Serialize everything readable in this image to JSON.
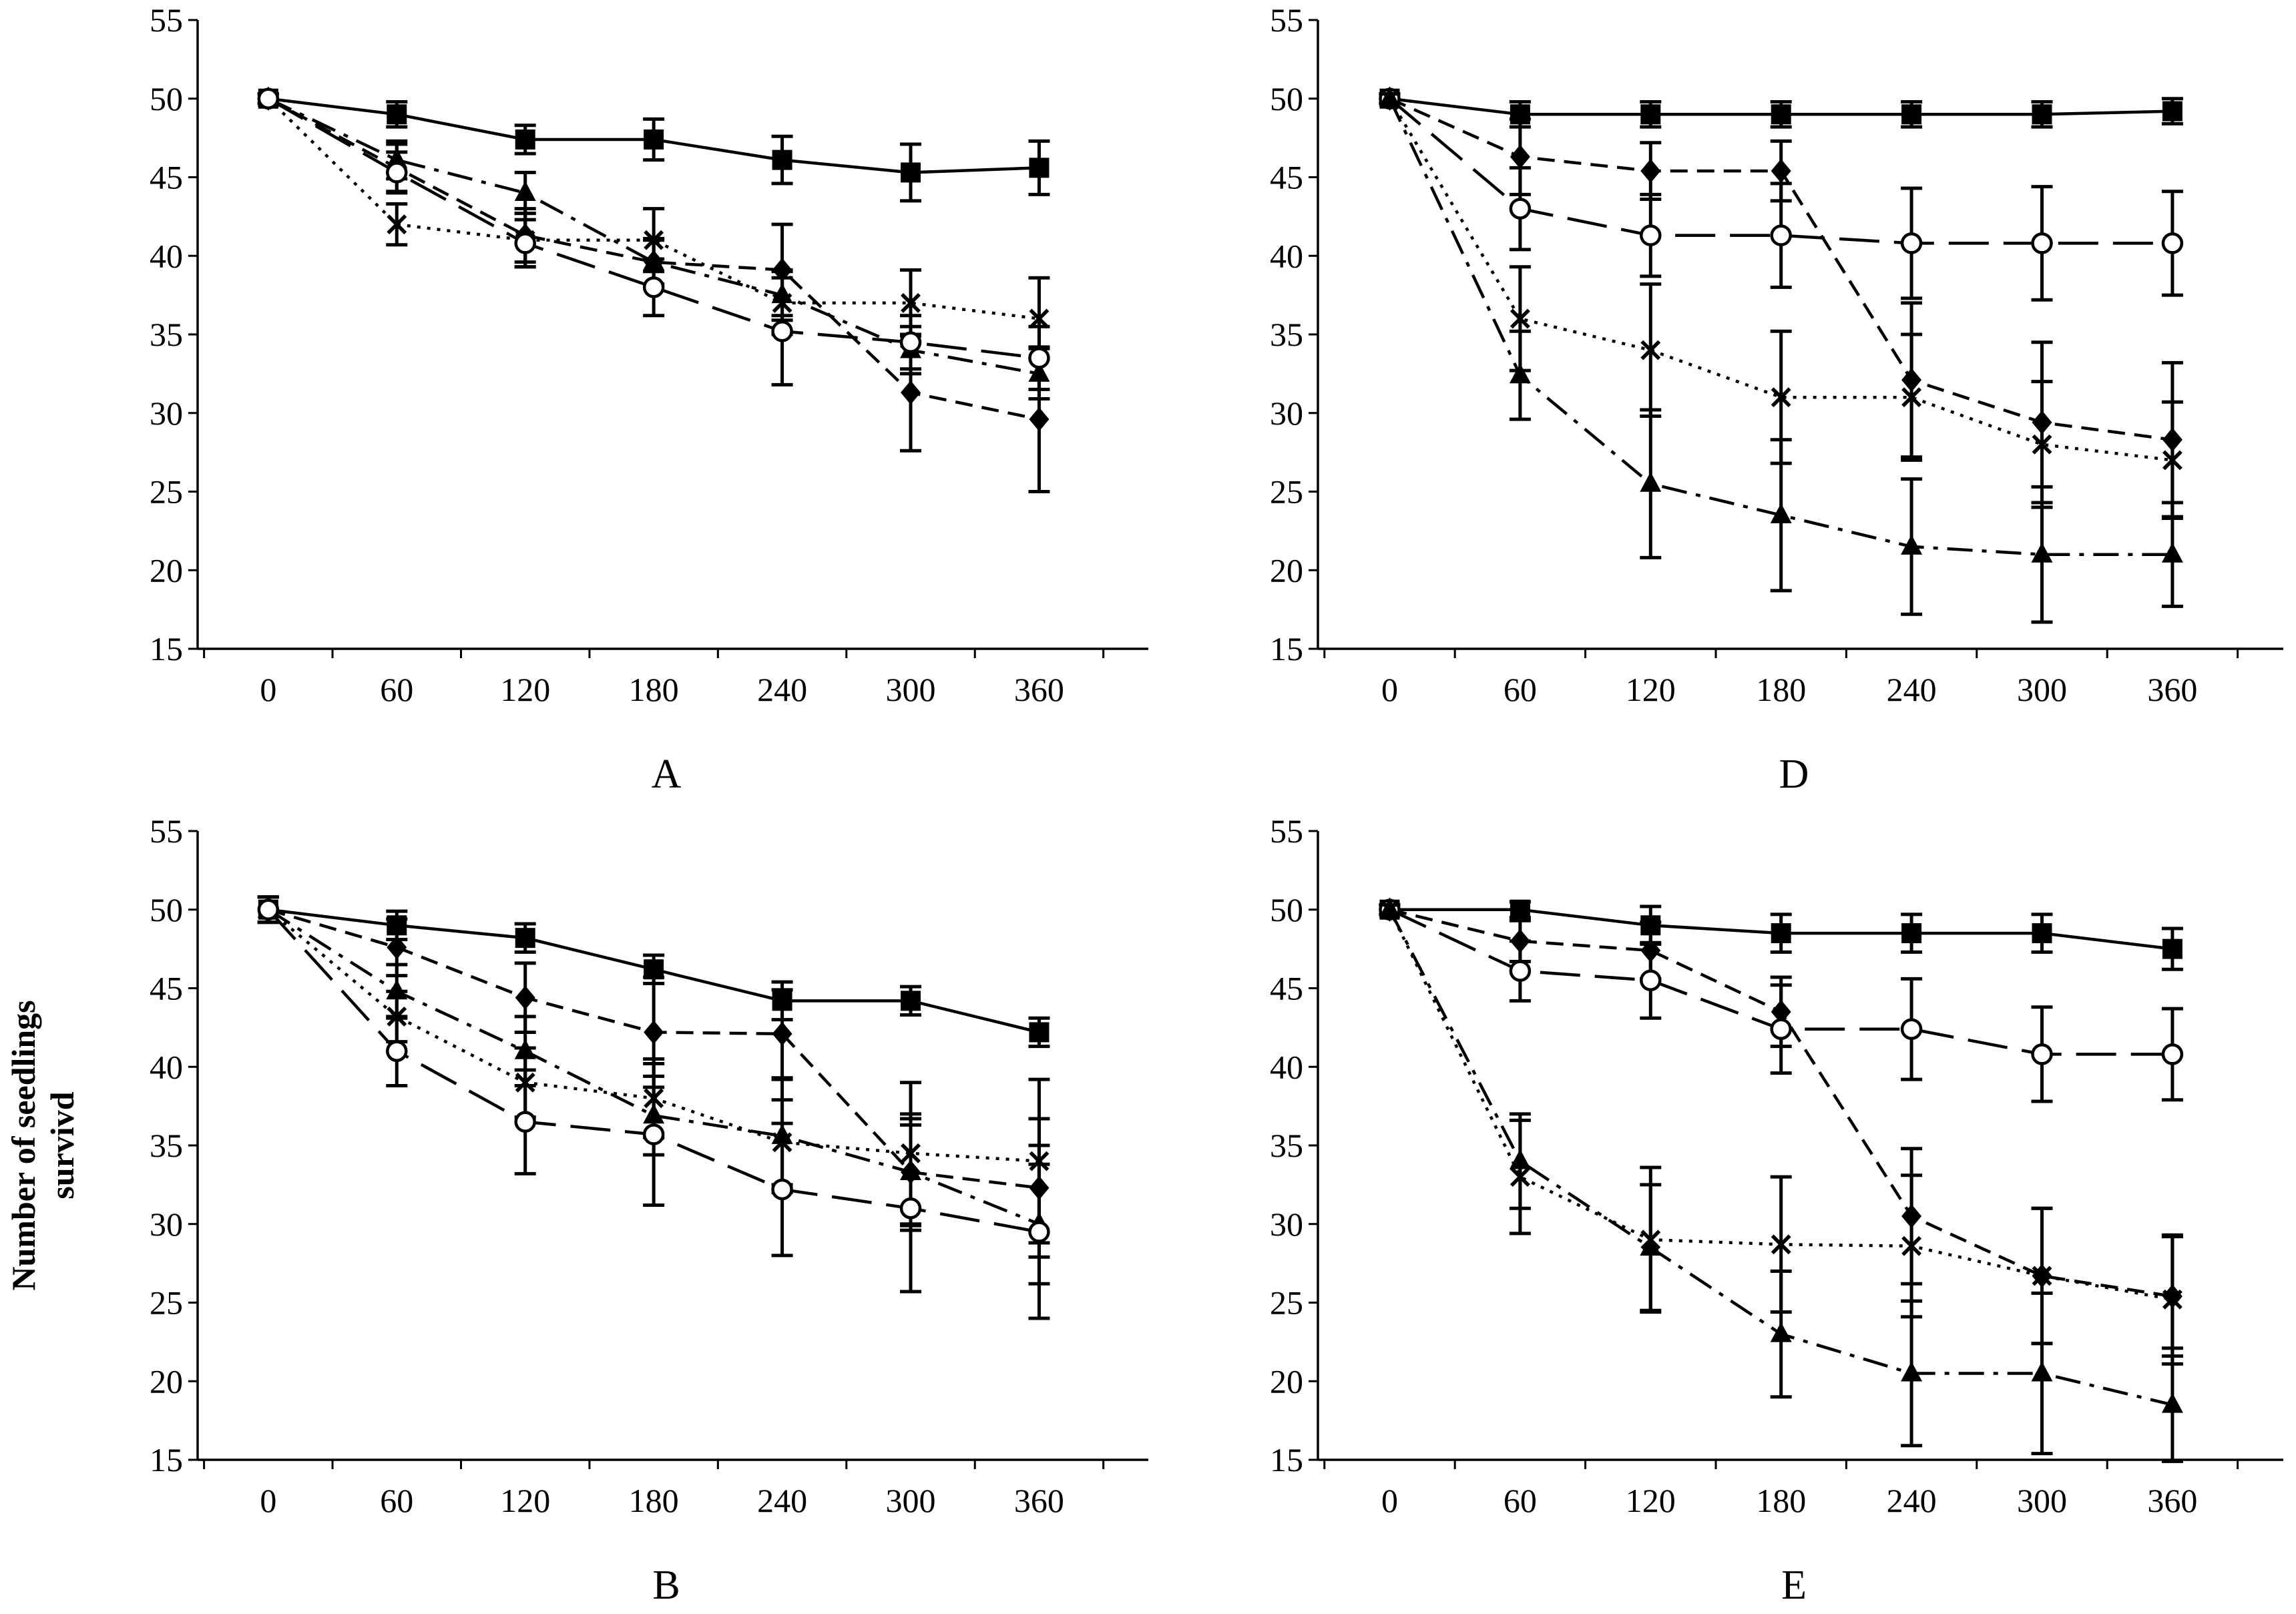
{
  "chart_data": [
    {
      "type": "line",
      "panel_label": "A",
      "x": [
        0,
        60,
        120,
        180,
        240,
        300,
        360
      ],
      "ylim": [
        15,
        55
      ],
      "yticks": [
        15,
        20,
        25,
        30,
        35,
        40,
        45,
        50,
        55
      ],
      "xlabel": "",
      "ylabel": "",
      "series": [
        {
          "name": "square",
          "marker": "square",
          "dash": "solid",
          "values": [
            50,
            49,
            47.4,
            47.4,
            46.1,
            45.3,
            45.6
          ],
          "err": [
            0.3,
            0.8,
            0.9,
            1.3,
            1.5,
            1.8,
            1.7
          ]
        },
        {
          "name": "diamond",
          "marker": "diamond",
          "dash": "short",
          "values": [
            50,
            45.6,
            41.3,
            39.6,
            39.1,
            31.3,
            29.6
          ],
          "err": [
            0.3,
            1.5,
            1.7,
            1.4,
            2.9,
            3.7,
            4.6
          ]
        },
        {
          "name": "triangle",
          "marker": "triangle",
          "dash": "dashdot",
          "values": [
            50,
            46.1,
            44,
            39.6,
            37.5,
            34,
            32.5
          ],
          "err": [
            0.3,
            1.2,
            1.3,
            1.5,
            1.6,
            1.5,
            1.6
          ]
        },
        {
          "name": "cross",
          "marker": "cross",
          "dash": "dot",
          "values": [
            50,
            42,
            41,
            41,
            37,
            37,
            36
          ],
          "err": [
            0.3,
            1.3,
            1.7,
            2,
            2,
            2.1,
            2.6
          ]
        },
        {
          "name": "circle",
          "marker": "circle",
          "dash": "long",
          "values": [
            50,
            45.3,
            40.8,
            38,
            35.2,
            34.5,
            33.5
          ],
          "err": [
            0.3,
            1.3,
            1.5,
            1.8,
            3.4,
            1.7,
            2
          ]
        }
      ]
    },
    {
      "type": "line",
      "panel_label": "D",
      "x": [
        0,
        60,
        120,
        180,
        240,
        300,
        360
      ],
      "ylim": [
        15,
        55
      ],
      "yticks": [
        15,
        20,
        25,
        30,
        35,
        40,
        45,
        50,
        55
      ],
      "xlabel": "",
      "ylabel": "",
      "series": [
        {
          "name": "square",
          "marker": "square",
          "dash": "solid",
          "values": [
            50,
            49,
            49,
            49,
            49,
            49,
            49.2
          ],
          "err": [
            0.3,
            0.8,
            0.8,
            0.8,
            0.8,
            0.8,
            0.8
          ]
        },
        {
          "name": "diamond",
          "marker": "diamond",
          "dash": "short",
          "values": [
            50,
            46.3,
            45.4,
            45.4,
            32.1,
            29.4,
            28.3
          ],
          "err": [
            0.3,
            2.4,
            1.8,
            1.9,
            4.9,
            5.1,
            4.9
          ]
        },
        {
          "name": "circle",
          "marker": "circle",
          "dash": "long",
          "values": [
            50,
            43,
            41.3,
            41.3,
            40.8,
            40.8,
            40.8
          ],
          "err": [
            0.3,
            2.6,
            2.6,
            3.3,
            3.5,
            3.6,
            3.3
          ]
        },
        {
          "name": "cross",
          "marker": "cross",
          "dash": "dot",
          "values": [
            50,
            36,
            34,
            31,
            31,
            28,
            27
          ],
          "err": [
            0.3,
            3.3,
            4.2,
            4.2,
            4,
            4,
            3.7
          ]
        },
        {
          "name": "triangle",
          "marker": "triangle",
          "dash": "dashdot",
          "values": [
            50,
            32.4,
            25.5,
            23.5,
            21.5,
            21,
            21
          ],
          "err": [
            0.3,
            2.8,
            4.7,
            4.8,
            4.3,
            4.3,
            3.3
          ]
        }
      ]
    },
    {
      "type": "line",
      "panel_label": "B",
      "x": [
        0,
        60,
        120,
        180,
        240,
        300,
        360
      ],
      "ylim": [
        15,
        55
      ],
      "yticks": [
        15,
        20,
        25,
        30,
        35,
        40,
        45,
        50,
        55
      ],
      "xlabel": "",
      "ylabel": "Number of seedlings survivd",
      "series": [
        {
          "name": "square",
          "marker": "square",
          "dash": "solid",
          "values": [
            50,
            49,
            48.2,
            46.2,
            44.2,
            44.2,
            42.2
          ],
          "err": [
            0.8,
            0.9,
            0.9,
            0.9,
            1.2,
            0.9,
            0.9
          ]
        },
        {
          "name": "diamond",
          "marker": "diamond",
          "dash": "short",
          "values": [
            50,
            47.6,
            44.4,
            42.2,
            42.1,
            33.3,
            32.3
          ],
          "err": [
            0.8,
            1.8,
            2.2,
            3.5,
            2.8,
            3.4,
            4.4
          ]
        },
        {
          "name": "triangle",
          "marker": "triangle",
          "dash": "dashdot",
          "values": [
            50,
            44.8,
            41,
            36.9,
            35.6,
            33.3,
            30
          ],
          "err": [
            0.8,
            1.7,
            2.2,
            2.5,
            3.6,
            3.7,
            3.8
          ]
        },
        {
          "name": "cross",
          "marker": "cross",
          "dash": "dot",
          "values": [
            50,
            43.2,
            39,
            38,
            35.2,
            34.5,
            34
          ],
          "err": [
            0.8,
            1.6,
            2.2,
            2.5,
            2.7,
            4.5,
            5.2
          ]
        },
        {
          "name": "circle",
          "marker": "circle",
          "dash": "long",
          "values": [
            50,
            41,
            36.5,
            35.7,
            32.2,
            31,
            29.5
          ],
          "err": [
            0.8,
            2.2,
            3.3,
            4.5,
            4.2,
            5.3,
            5.5
          ]
        }
      ]
    },
    {
      "type": "line",
      "panel_label": "E",
      "x": [
        0,
        60,
        120,
        180,
        240,
        300,
        360
      ],
      "ylim": [
        15,
        55
      ],
      "yticks": [
        15,
        20,
        25,
        30,
        35,
        40,
        45,
        50,
        55
      ],
      "xlabel": "",
      "ylabel": "",
      "series": [
        {
          "name": "square",
          "marker": "square",
          "dash": "solid",
          "values": [
            50,
            50,
            49,
            48.5,
            48.5,
            48.5,
            47.5
          ],
          "err": [
            0.3,
            0.5,
            1.2,
            1.2,
            1.2,
            1.2,
            1.3
          ]
        },
        {
          "name": "diamond",
          "marker": "diamond",
          "dash": "short",
          "values": [
            50,
            48,
            47.4,
            43.5,
            30.5,
            26.7,
            25.4
          ],
          "err": [
            0.3,
            1.3,
            1.8,
            2.2,
            4.3,
            4.3,
            3.8
          ]
        },
        {
          "name": "circle",
          "marker": "circle",
          "dash": "long",
          "values": [
            50,
            46.1,
            45.5,
            42.4,
            42.4,
            40.8,
            40.8
          ],
          "err": [
            0.3,
            1.9,
            2.4,
            2.8,
            3.2,
            3,
            2.9
          ]
        },
        {
          "name": "cross",
          "marker": "cross",
          "dash": "dot",
          "values": [
            50,
            33,
            29,
            28.7,
            28.6,
            26.7,
            25.2
          ],
          "err": [
            0.3,
            3.6,
            4.6,
            4.3,
            4.5,
            4.3,
            4.1
          ]
        },
        {
          "name": "triangle",
          "marker": "triangle",
          "dash": "dashdot",
          "values": [
            50,
            34,
            28.5,
            23,
            20.5,
            20.5,
            18.5
          ],
          "err": [
            0.3,
            3,
            4,
            4,
            4.6,
            5.1,
            3.6
          ]
        }
      ]
    }
  ]
}
